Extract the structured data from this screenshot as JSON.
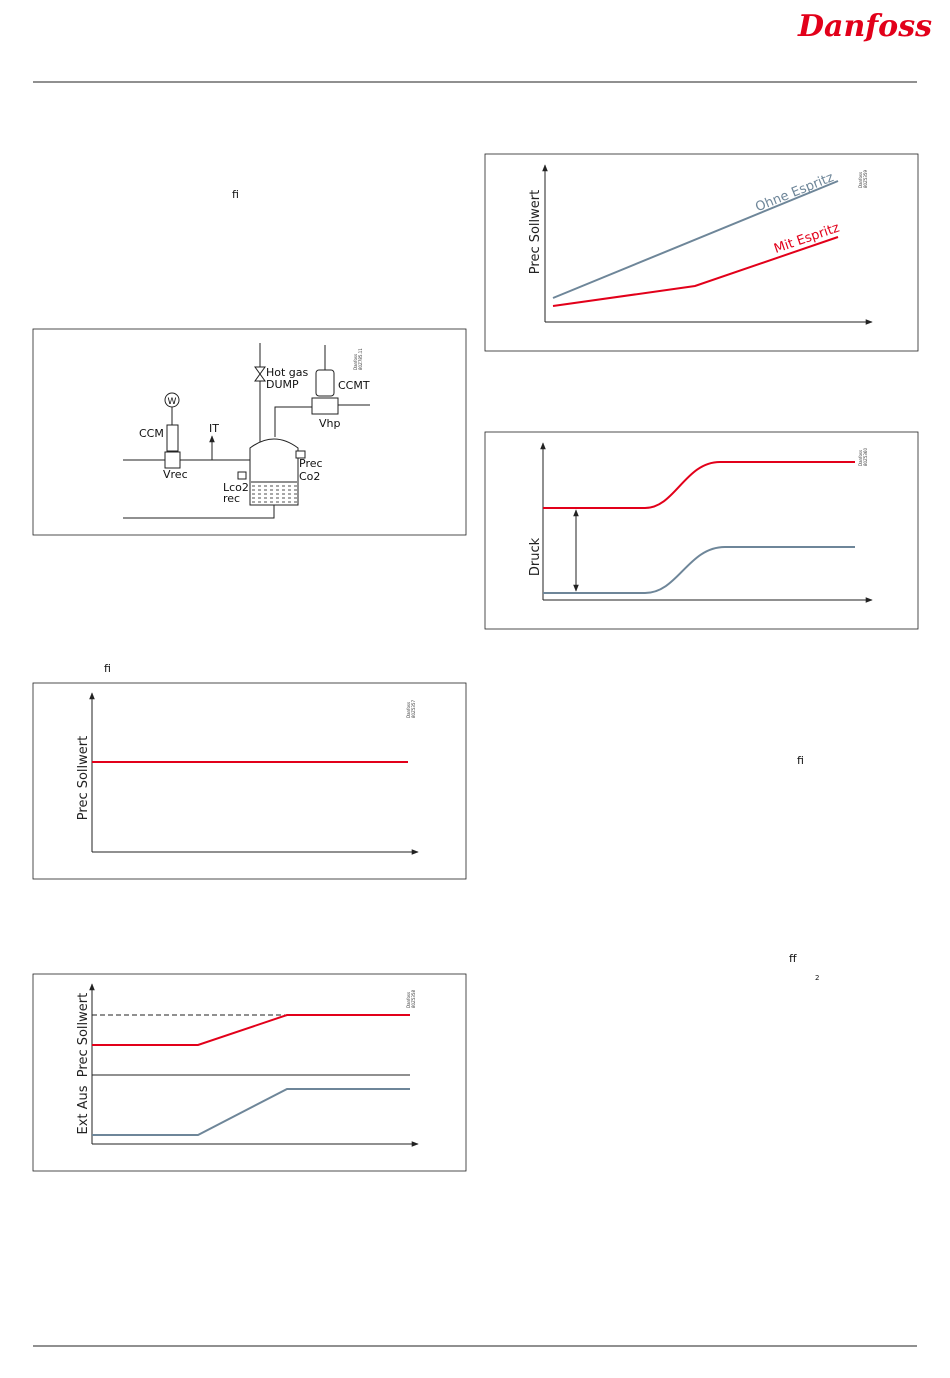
{
  "header": {
    "logo": "Danfoss"
  },
  "stray_text": [
    "ﬁ",
    "ﬁ",
    "ﬁ",
    "ﬀ",
    "2"
  ],
  "figures": [
    {
      "labels": [
        "Hot gas",
        "DUMP",
        "CCMT",
        "Vhp",
        "W",
        "CCM",
        "IT",
        "Vrec",
        "Prec",
        "Co2",
        "Lco2",
        "rec"
      ],
      "code": [
        "Danfoss",
        "80Z785.11"
      ]
    },
    {
      "y_label": "Prec Sollwert",
      "code": [
        "Danfoss",
        "80Z5357"
      ]
    },
    {
      "y_labels": [
        "Prec Sollwert",
        "Ext Aus"
      ],
      "code": [
        "Danfoss",
        "80Z5358"
      ]
    },
    {
      "y_label": "Prec Sollwert",
      "series": [
        "Ohne Espritz",
        "Mit Espritz"
      ],
      "code": [
        "Danfoss",
        "80Z5359"
      ]
    },
    {
      "y_label": "Druck",
      "code": [
        "Danfoss",
        "80Z5360"
      ]
    }
  ]
}
